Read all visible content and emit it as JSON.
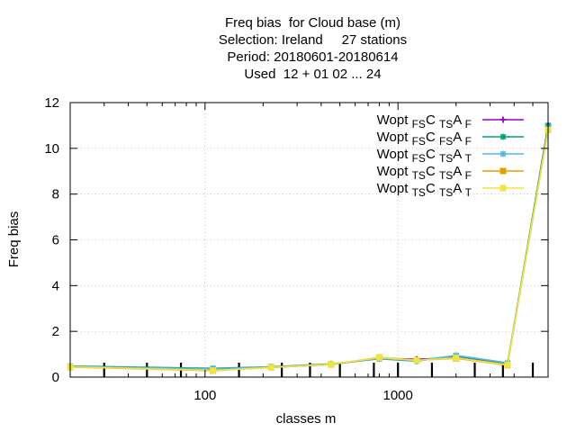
{
  "chart_data": {
    "type": "line",
    "title_lines": [
      "Freq bias  for Cloud base (m)",
      "Selection: Ireland     27 stations",
      "Period: 20180601-20180614",
      "Used  12 + 01 02 ... 24"
    ],
    "xlabel": "classes m",
    "ylabel": "Freq bias",
    "x_scale": "log",
    "xlim": [
      20,
      6000
    ],
    "ylim": [
      0,
      12
    ],
    "x_tick_labels": [
      "100",
      "1000"
    ],
    "x_ticks": [
      100,
      1000
    ],
    "y_ticks": [
      0,
      2,
      4,
      6,
      8,
      10,
      12
    ],
    "grid": true,
    "legend_position": "top-right",
    "minor_tick_bars": [
      30,
      50,
      75,
      150,
      250,
      350,
      500,
      750,
      1000,
      1500,
      2500,
      3500,
      5000
    ],
    "x": [
      20,
      110,
      220,
      450,
      800,
      1250,
      2000,
      3700,
      6000
    ],
    "series": [
      {
        "name": "Wopt FS CTS AF",
        "legend": {
          "base": "Wopt",
          "sub1": "FS",
          "mid": "C",
          "sub2": "TS",
          "mid2": "A",
          "sub3": "F"
        },
        "color": "#9400d3",
        "marker": "plus",
        "values": [
          0.45,
          0.3,
          0.42,
          0.55,
          0.82,
          0.78,
          0.85,
          0.55,
          11.0
        ]
      },
      {
        "name": "Wopt FS CFS AF",
        "legend": {
          "base": "Wopt",
          "sub1": "FS",
          "mid": "C",
          "sub2": "FS",
          "mid2": "A",
          "sub3": "F"
        },
        "color": "#009e73",
        "marker": "star",
        "values": [
          0.48,
          0.38,
          0.45,
          0.58,
          0.8,
          0.7,
          0.92,
          0.6,
          11.0
        ]
      },
      {
        "name": "Wopt FS CTS AT",
        "legend": {
          "base": "Wopt",
          "sub1": "FS",
          "mid": "C",
          "sub2": "TS",
          "mid2": "A",
          "sub3": "T"
        },
        "color": "#56b4e9",
        "marker": "star",
        "values": [
          0.46,
          0.36,
          0.44,
          0.56,
          0.82,
          0.72,
          0.95,
          0.62,
          10.9
        ]
      },
      {
        "name": "Wopt TS CTS AF",
        "legend": {
          "base": "Wopt",
          "sub1": "TS",
          "mid": "C",
          "sub2": "TS",
          "mid2": "A",
          "sub3": "F"
        },
        "color": "#e69f00",
        "marker": "square",
        "values": [
          0.44,
          0.28,
          0.43,
          0.55,
          0.86,
          0.74,
          0.82,
          0.52,
          10.8
        ]
      },
      {
        "name": "Wopt TS CTS AT",
        "legend": {
          "base": "Wopt",
          "sub1": "TS",
          "mid": "C",
          "sub2": "TS",
          "mid2": "A",
          "sub3": "T"
        },
        "color": "#f0e442",
        "marker": "square",
        "values": [
          0.45,
          0.29,
          0.42,
          0.56,
          0.85,
          0.73,
          0.84,
          0.54,
          10.8
        ]
      }
    ]
  }
}
